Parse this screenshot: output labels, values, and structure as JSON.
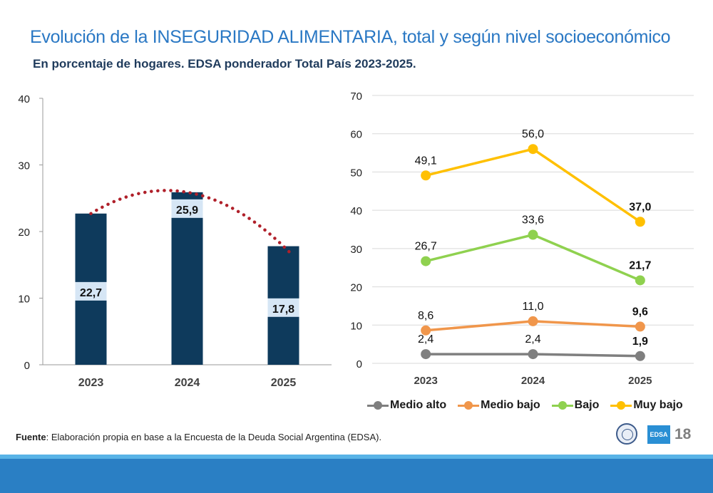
{
  "title": "Evolución de la INSEGURIDAD ALIMENTARIA, total y según nivel socioeconómico",
  "subtitle": "En porcentaje de hogares. EDSA ponderador Total País 2023-2025.",
  "chart_data": [
    {
      "type": "bar",
      "categories": [
        "2023",
        "2024",
        "2025"
      ],
      "values": [
        22.7,
        25.9,
        17.8
      ],
      "value_labels": [
        "22,7",
        "25,9",
        "17,8"
      ],
      "ylim": [
        0,
        40
      ],
      "yticks": [
        "0",
        "10",
        "20",
        "30",
        "40"
      ],
      "bar_color": "#0e3a5c",
      "trend": {
        "style": "dotted curve",
        "color": "#b0202a"
      },
      "grid": false
    },
    {
      "type": "line",
      "categories": [
        "2023",
        "2024",
        "2025"
      ],
      "ylim": [
        0,
        70
      ],
      "yticks": [
        "0",
        "10",
        "20",
        "30",
        "40",
        "50",
        "60",
        "70"
      ],
      "grid": true,
      "legend_position": "bottom",
      "series": [
        {
          "name": "Medio alto",
          "values": [
            2.4,
            2.4,
            1.9
          ],
          "labels": [
            "2,4",
            "2,4",
            "1,9"
          ],
          "color": "#7f7f7f",
          "label_pos": "above"
        },
        {
          "name": "Medio bajo",
          "values": [
            8.6,
            11.0,
            9.6
          ],
          "labels": [
            "8,6",
            "11,0",
            "9,6"
          ],
          "color": "#f0964b",
          "label_pos": "above"
        },
        {
          "name": "Bajo",
          "values": [
            26.7,
            33.6,
            21.7
          ],
          "labels": [
            "26,7",
            "33,6",
            "21,7"
          ],
          "color": "#8fd14f",
          "label_pos": "above"
        },
        {
          "name": "Muy bajo",
          "values": [
            49.1,
            56.0,
            37.0
          ],
          "labels": [
            "49,1",
            "56,0",
            "37,0"
          ],
          "color": "#ffc000",
          "label_pos": "above"
        }
      ]
    }
  ],
  "source": {
    "label": "Fuente",
    "text": ": Elaboración propia en base a la Encuesta de la Deuda Social Argentina (EDSA)."
  },
  "logo_text": "EDSA",
  "page_number": "18"
}
